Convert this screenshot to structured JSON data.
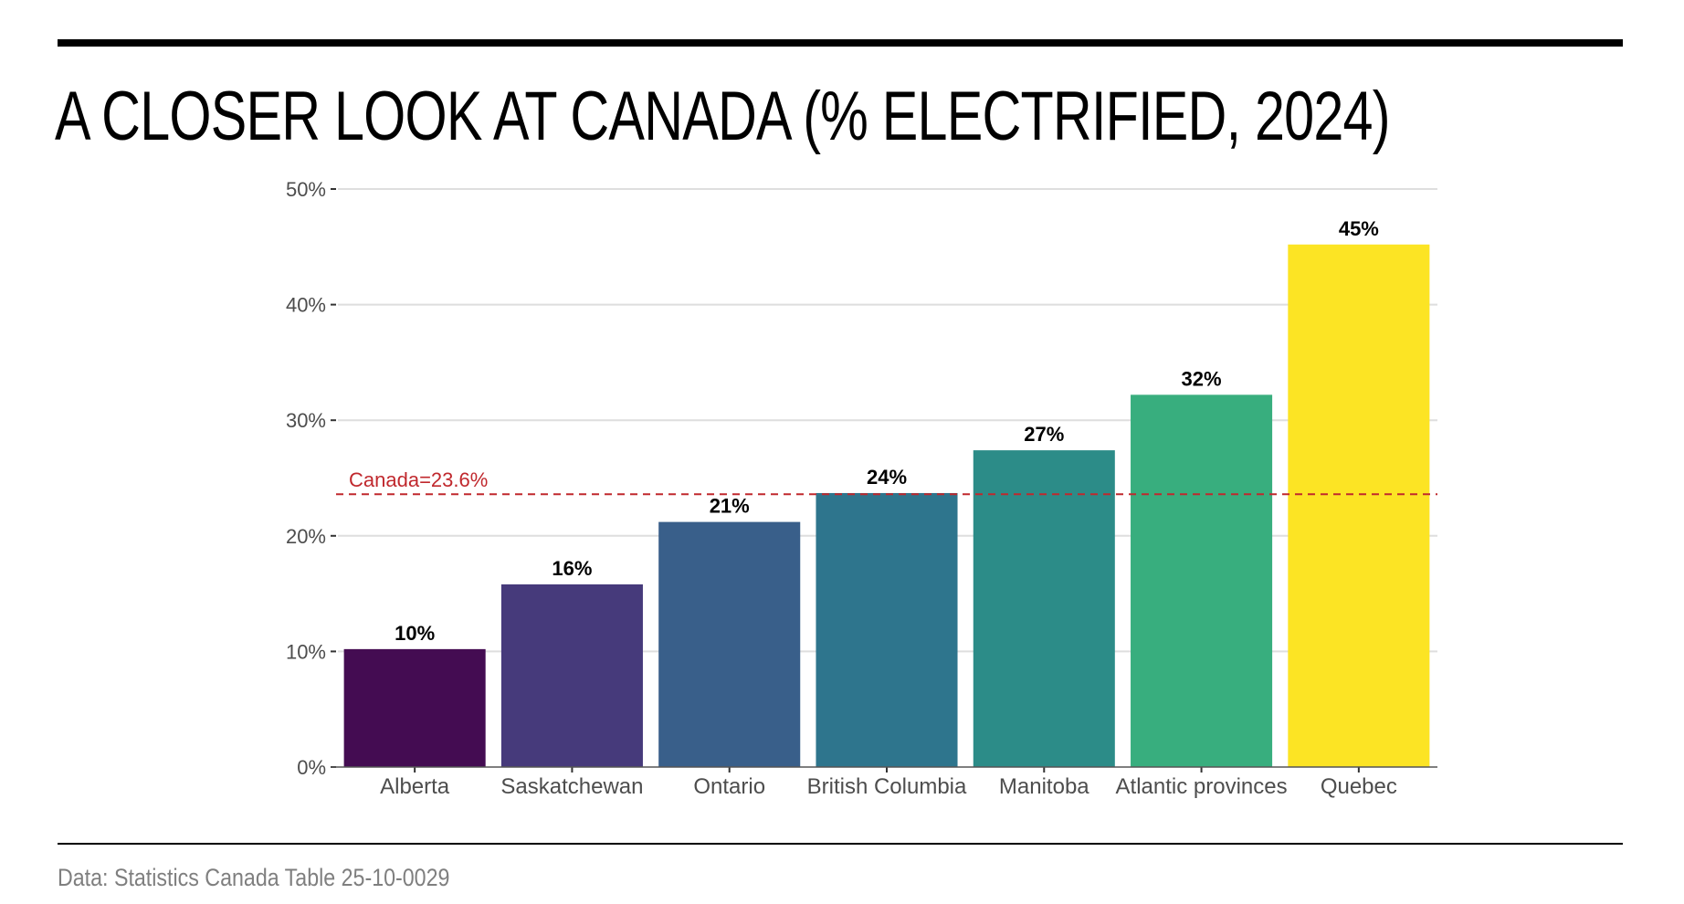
{
  "header": {
    "title": "A CLOSER LOOK AT CANADA (% ELECTRIFIED, 2024)"
  },
  "footer": {
    "source": "Data: Statistics Canada Table 25-10-0029"
  },
  "chart_data": {
    "type": "bar",
    "title": "A CLOSER LOOK AT CANADA (% ELECTRIFIED, 2024)",
    "xlabel": "",
    "ylabel": "",
    "categories": [
      "Alberta",
      "Saskatchewan",
      "Ontario",
      "British Columbia",
      "Manitoba",
      "Atlantic provinces",
      "Quebec"
    ],
    "values": [
      10.2,
      15.8,
      21.2,
      23.7,
      27.4,
      32.2,
      45.2
    ],
    "data_labels": [
      "10%",
      "16%",
      "21%",
      "24%",
      "27%",
      "32%",
      "45%"
    ],
    "colors": [
      "#440c52",
      "#463a7b",
      "#395f8a",
      "#2e758d",
      "#2c8c88",
      "#38ae7e",
      "#fce424"
    ],
    "ylim": [
      0,
      50
    ],
    "yticks": [
      0,
      10,
      20,
      30,
      40,
      50
    ],
    "ytick_labels": [
      "0%",
      "10%",
      "20%",
      "30%",
      "40%",
      "50%"
    ],
    "grid": true,
    "reference_line": {
      "value": 23.6,
      "label": "Canada=23.6%",
      "color": "#c0282d",
      "style": "dashed"
    },
    "legend": "none",
    "source": "Data: Statistics Canada Table 25-10-0029"
  }
}
